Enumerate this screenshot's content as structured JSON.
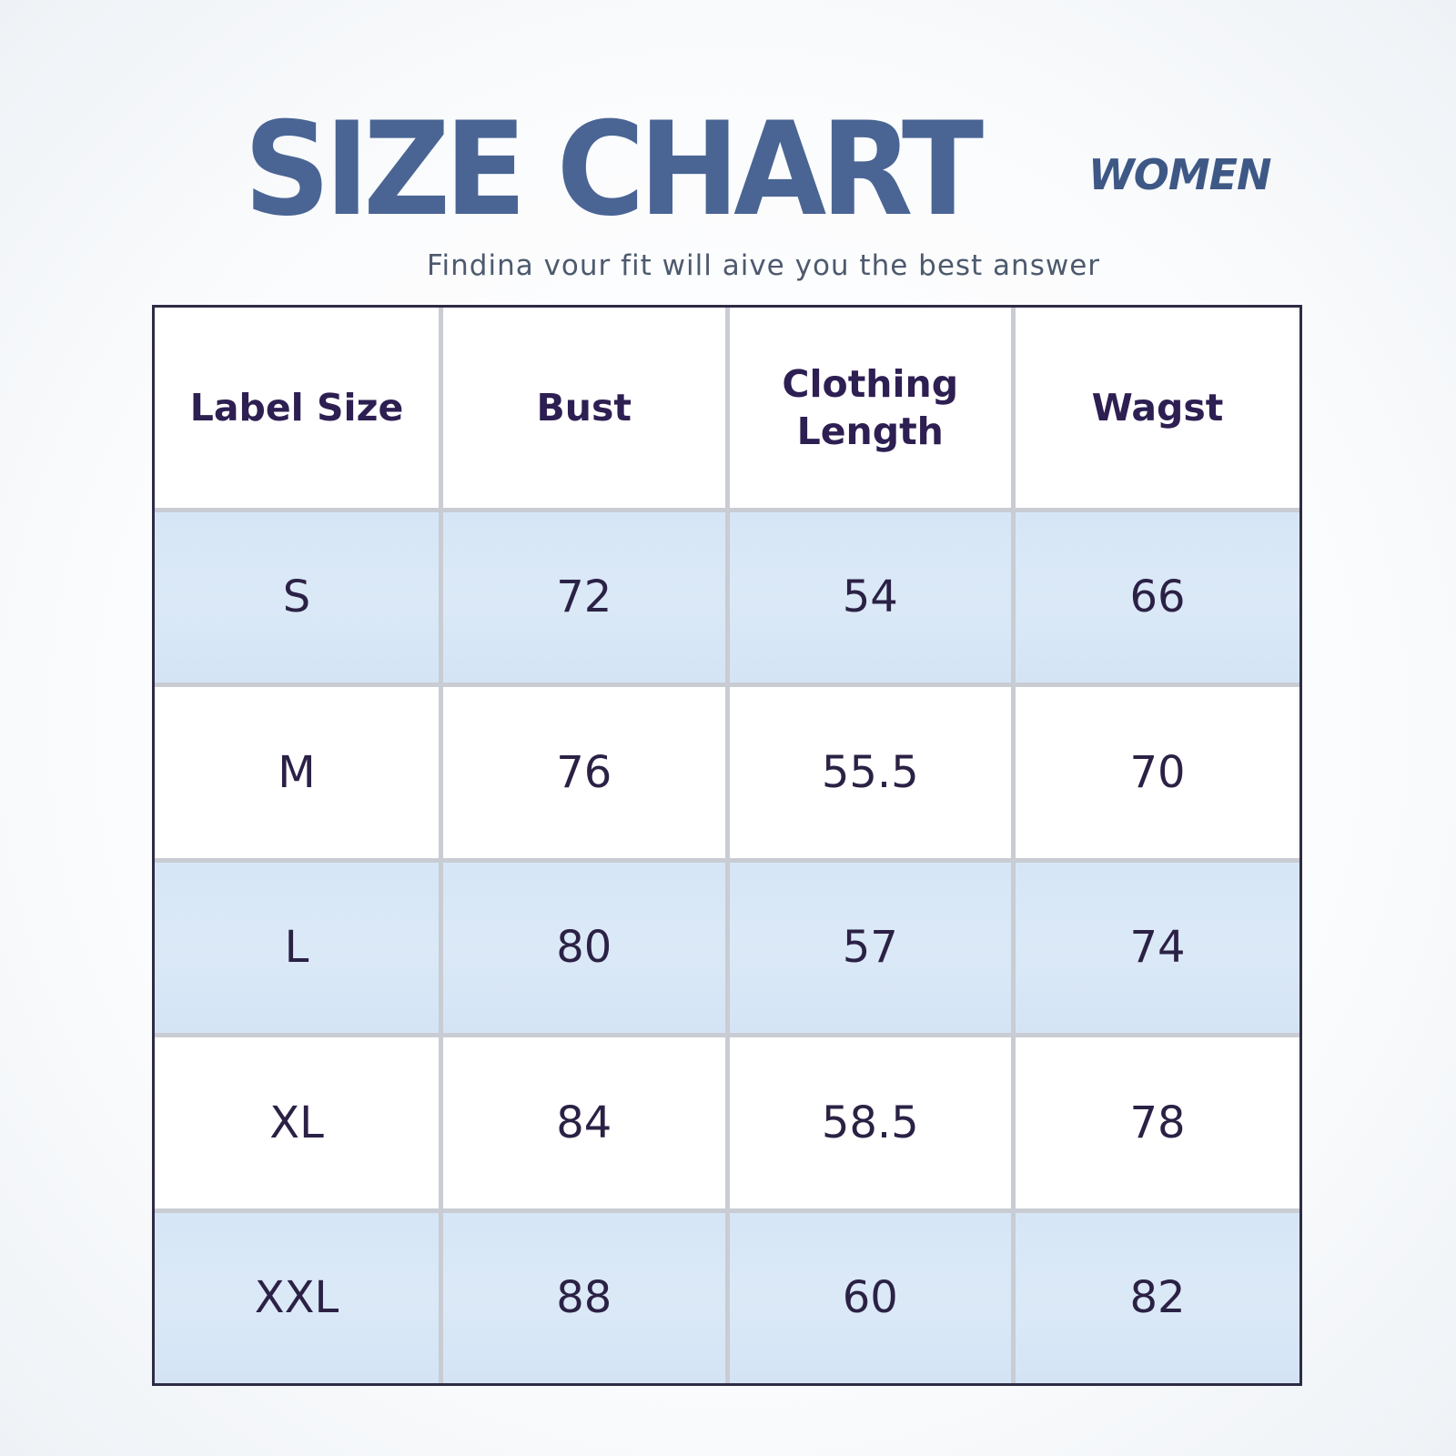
{
  "header": {
    "title": "SIZE CHART",
    "subtitle": "WOMEN",
    "tagline": "Findina vour fit will aive you the best answer"
  },
  "table": {
    "columns": [
      "Label Size",
      "Bust",
      "Clothing Length",
      "Wagst"
    ],
    "rows": [
      {
        "size": "S",
        "bust": "72",
        "length": "54",
        "waist": "66"
      },
      {
        "size": "M",
        "bust": "76",
        "length": "55.5",
        "waist": "70"
      },
      {
        "size": "L",
        "bust": "80",
        "length": "57",
        "waist": "74"
      },
      {
        "size": "XL",
        "bust": "84",
        "length": "58.5",
        "waist": "78"
      },
      {
        "size": "XXL",
        "bust": "88",
        "length": "60",
        "waist": "82"
      }
    ]
  },
  "colors": {
    "title": "#4a6594",
    "text": "#2e1f4f",
    "shaded_row": "#d8e7f7",
    "grid": "#c9ccd3",
    "border": "#2f2b45"
  }
}
